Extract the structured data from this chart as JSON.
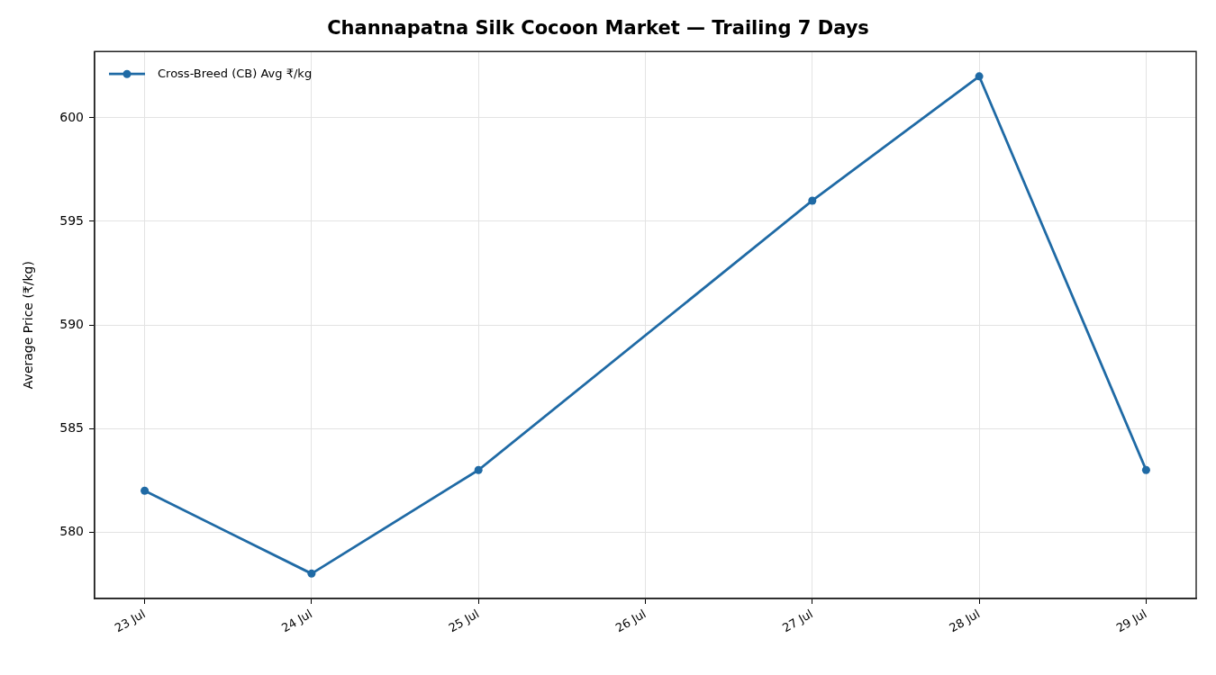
{
  "chart_data": {
    "type": "line",
    "title": "Channapatna Silk Cocoon Market — Trailing 7 Days",
    "ylabel": "Average Price (₹/kg)",
    "x": [
      "--07-23",
      "--07-24",
      "--07-25",
      "--07-27",
      "--07-28",
      "--07-29"
    ],
    "series": [
      {
        "name": "Cross-Breed (CB) Avg ₹/kg",
        "color": "#1f6aa5",
        "values": [
          582,
          578,
          583,
          596,
          602,
          583
        ]
      }
    ],
    "xlim": [
      "--07-22T16:48",
      "--07-29T07:12"
    ],
    "xticks": [
      {
        "value": "--07-23",
        "label": "23 Jul"
      },
      {
        "value": "--07-24",
        "label": "24 Jul"
      },
      {
        "value": "--07-25",
        "label": "25 Jul"
      },
      {
        "value": "--07-26",
        "label": "26 Jul"
      },
      {
        "value": "--07-27",
        "label": "27 Jul"
      },
      {
        "value": "--07-28",
        "label": "28 Jul"
      },
      {
        "value": "--07-29",
        "label": "29 Jul"
      }
    ],
    "ylim": [
      576.8,
      603.2
    ],
    "yticks": [
      580,
      585,
      590,
      595,
      600
    ],
    "grid": true,
    "legend": "top left",
    "marker": "circle",
    "line_style": "solid"
  }
}
